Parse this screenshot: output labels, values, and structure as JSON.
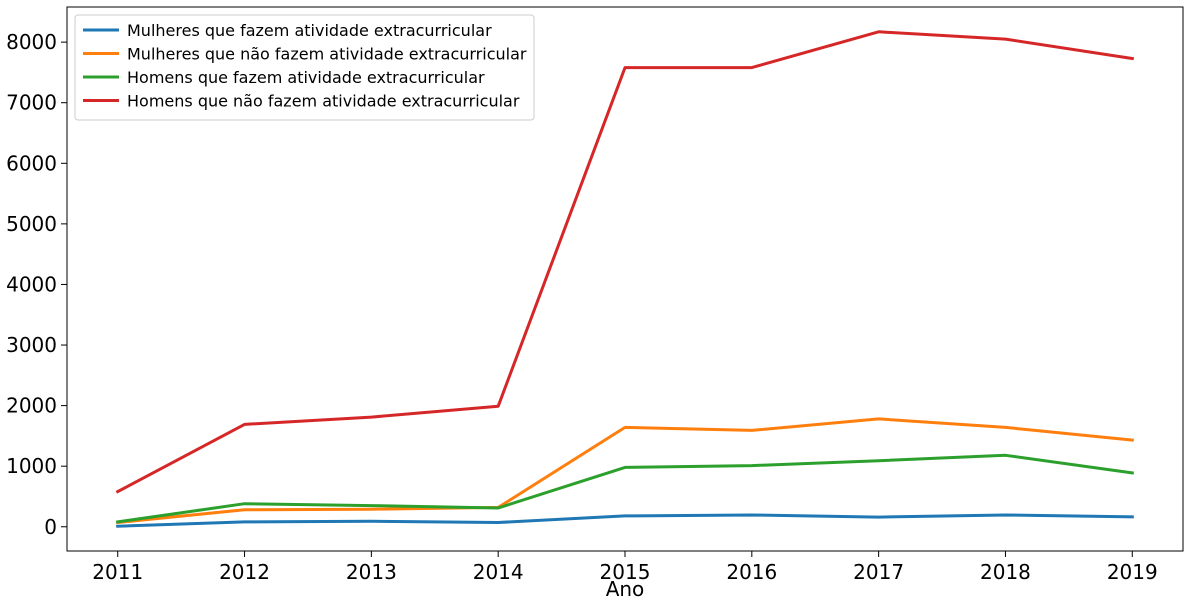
{
  "chart_data": {
    "type": "line",
    "title": "",
    "xlabel": "Ano",
    "ylabel": "",
    "x": [
      2011,
      2012,
      2013,
      2014,
      2015,
      2016,
      2017,
      2018,
      2019
    ],
    "xticks": [
      "2011",
      "2012",
      "2013",
      "2014",
      "2015",
      "2016",
      "2017",
      "2018",
      "2019"
    ],
    "yticks": [
      0,
      1000,
      2000,
      3000,
      4000,
      5000,
      6000,
      7000,
      8000
    ],
    "ytick_labels": [
      "0",
      "1000",
      "2000",
      "3000",
      "4000",
      "5000",
      "6000",
      "7000",
      "8000"
    ],
    "xlim": [
      2010.6,
      2019.4
    ],
    "ylim": [
      -400,
      8580
    ],
    "grid": false,
    "legend_position": "top-left",
    "series": [
      {
        "name": "Mulheres que fazem atividade extracurricular",
        "color": "#1f77b4",
        "values": [
          10,
          80,
          90,
          70,
          180,
          195,
          160,
          195,
          165
        ]
      },
      {
        "name": "Mulheres que não fazem atividade extracurricular",
        "color": "#ff7f0e",
        "values": [
          70,
          280,
          290,
          320,
          1640,
          1590,
          1780,
          1640,
          1430
        ]
      },
      {
        "name": "Homens que fazem atividade extracurricular",
        "color": "#2ca02c",
        "values": [
          80,
          380,
          350,
          310,
          980,
          1010,
          1090,
          1180,
          890
        ]
      },
      {
        "name": "Homens que não fazem atividade extracurricular",
        "color": "#d62728",
        "values": [
          580,
          1690,
          1810,
          1990,
          7580,
          7580,
          8170,
          8050,
          7730
        ]
      }
    ]
  }
}
